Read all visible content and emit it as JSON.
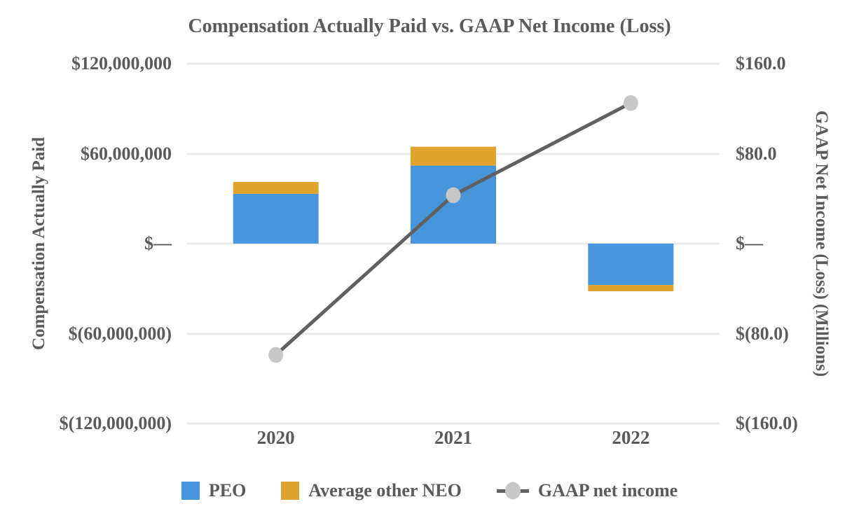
{
  "chart_data": {
    "type": "combo-stacked-bar-line",
    "title": "Compensation Actually Paid vs. GAAP Net Income (Loss)",
    "categories": [
      "2020",
      "2021",
      "2022"
    ],
    "bar_series": [
      {
        "name": "PEO",
        "color": "#4796DB",
        "axis": "left",
        "values": [
          33200000,
          52000000,
          -27600000
        ]
      },
      {
        "name": "Average other NEO",
        "color": "#E0A42E",
        "axis": "left",
        "values": [
          7900000,
          12600000,
          -4200000
        ]
      }
    ],
    "line_series": {
      "name": "GAAP net income",
      "axis": "right",
      "line_color": "#606060",
      "marker_color": "#C7C7C7",
      "values_millions": [
        -99,
        43,
        125
      ]
    },
    "y_left": {
      "label": "Compensation Actually Paid",
      "min": -120000000,
      "max": 120000000,
      "ticks": [
        {
          "value": 120000000,
          "label": "$120,000,000"
        },
        {
          "value": 60000000,
          "label": "$60,000,000"
        },
        {
          "value": 0,
          "label": "$—"
        },
        {
          "value": -60000000,
          "label": "$(60,000,000)"
        },
        {
          "value": -120000000,
          "label": "$(120,000,000)"
        }
      ]
    },
    "y_right": {
      "label": "GAAP Net Income (Loss) (Millions)",
      "min": -160,
      "max": 160,
      "ticks": [
        {
          "value": 160,
          "label": "$160.0"
        },
        {
          "value": 80,
          "label": "$80.0"
        },
        {
          "value": 0,
          "label": "$—"
        },
        {
          "value": -80,
          "label": "$(80.0)"
        },
        {
          "value": -160,
          "label": "$(160.0)"
        }
      ]
    },
    "grid": true,
    "gridline_color": "#E9E9E9",
    "text_color": "#5A5A5A",
    "legend_position": "bottom",
    "legend": [
      "PEO",
      "Average other NEO",
      "GAAP net income"
    ]
  }
}
